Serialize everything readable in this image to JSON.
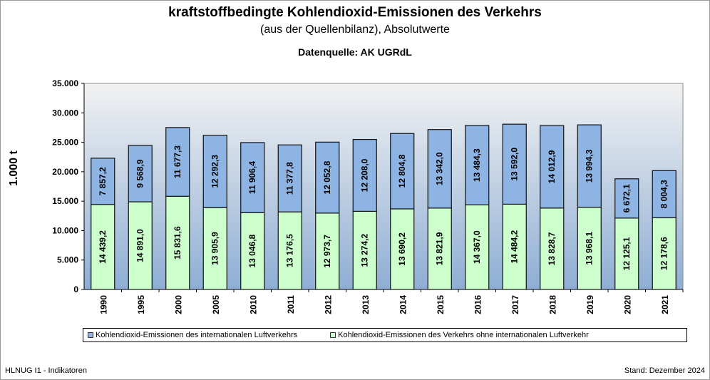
{
  "chart_data": {
    "type": "bar",
    "stacked": true,
    "title": "kraftstoffbedingte Kohlendioxid-Emissionen des Verkehrs",
    "subtitle": "(aus der Quellenbilanz), Absolutwerte",
    "source": "Datenquelle: AK UGRdL",
    "ylabel": "1.000 t",
    "ylim": [
      0,
      35000
    ],
    "yticks": [
      "0",
      "5.000",
      "10.000",
      "15.000",
      "20.000",
      "25.000",
      "30.000",
      "35.000"
    ],
    "grid": false,
    "legend_position": "bottom",
    "categories": [
      "1990",
      "1995",
      "2000",
      "2005",
      "2010",
      "2011",
      "2012",
      "2013",
      "2014",
      "2015",
      "2016",
      "2017",
      "2018",
      "2019",
      "2020",
      "2021"
    ],
    "series": [
      {
        "name": "Kohlendioxid-Emissionen des Verkehrs ohne internationalen Luftverkehr",
        "color": "#ccffcc",
        "values": [
          14439.2,
          14891.0,
          15831.6,
          13905.9,
          13046.8,
          13176.5,
          12973.7,
          13274.2,
          13690.2,
          13821.9,
          14367.0,
          14484.2,
          13828.7,
          13968.1,
          12125.1,
          12178.6
        ],
        "labels": [
          "14 439,2",
          "14 891,0",
          "15 831,6",
          "13 905,9",
          "13 046,8",
          "13 176,5",
          "12 973,7",
          "13 274,2",
          "13 690,2",
          "13 821,9",
          "14 367,0",
          "14 484,2",
          "13 828,7",
          "13 968,1",
          "12 125,1",
          "12 178,6"
        ]
      },
      {
        "name": "Kohlendioxid-Emissionen des internationalen Luftverkehrs",
        "color": "#8eb4e3",
        "values": [
          7857.2,
          9568.9,
          11677.3,
          12292.3,
          11906.4,
          11377.8,
          12052.8,
          12208.0,
          12804.8,
          13342.0,
          13484.3,
          13592.0,
          14012.9,
          13994.3,
          6672.1,
          8004.3
        ],
        "labels": [
          "7 857,2",
          "9 568,9",
          "11 677,3",
          "12 292,3",
          "11 906,4",
          "11 377,8",
          "12 052,8",
          "12 208,0",
          "12 804,8",
          "13 342,0",
          "13 484,3",
          "13 592,0",
          "14 012,9",
          "13 994,3",
          "6 672,1",
          "8 004,3"
        ]
      }
    ]
  },
  "footer": {
    "left": "HLNUG I1 - Indikatoren",
    "right": "Stand: Dezember 2024"
  }
}
